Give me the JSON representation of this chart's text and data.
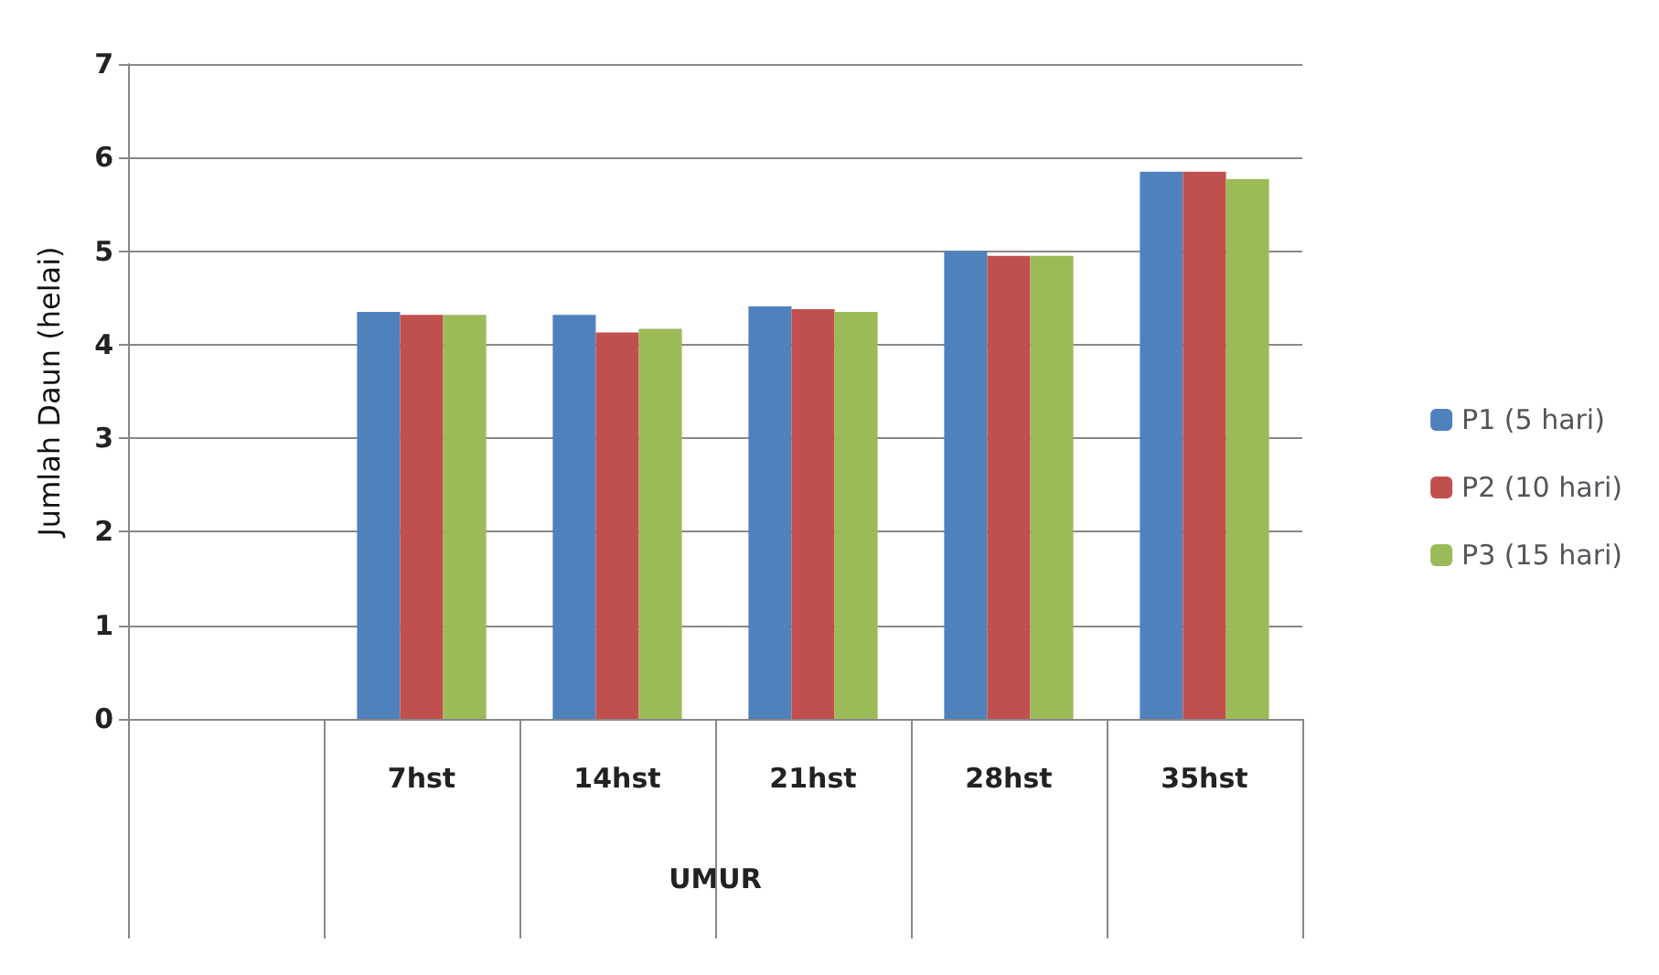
{
  "chart_data": {
    "type": "bar",
    "xlabel": "UMUR",
    "ylabel": "Jumlah Daun (helai)",
    "categories": [
      null,
      "7hst",
      "14hst",
      "21hst",
      "28hst",
      "35hst"
    ],
    "series": [
      {
        "name": "P1 (5 hari)",
        "color": "#4f81bd",
        "values": [
          null,
          4.35,
          4.32,
          4.41,
          5.0,
          5.85
        ]
      },
      {
        "name": "P2 (10 hari)",
        "color": "#c0504d",
        "values": [
          null,
          4.32,
          4.13,
          4.38,
          4.95,
          5.85
        ]
      },
      {
        "name": "P3 (15 hari)",
        "color": "#9bbb59",
        "values": [
          null,
          4.32,
          4.17,
          4.35,
          4.95,
          5.77
        ]
      }
    ],
    "ylim": [
      0,
      7
    ],
    "yticks": [
      0,
      1,
      2,
      3,
      4,
      5,
      6,
      7
    ],
    "grid": "y",
    "legend": "right"
  }
}
